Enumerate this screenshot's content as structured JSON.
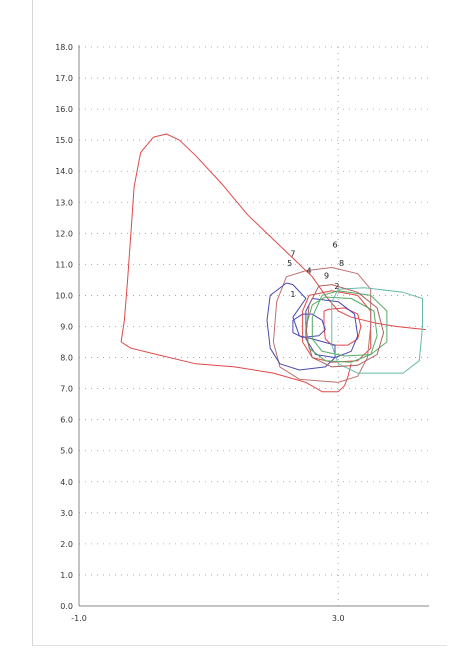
{
  "chart_data": {
    "type": "line",
    "title": "",
    "xlabel": "",
    "ylabel": "",
    "xlim": [
      -1.0,
      4.4
    ],
    "ylim": [
      0,
      18.0
    ],
    "x_tick_labels": [
      "-1.0",
      "3.0"
    ],
    "x_tick_values": [
      -1.0,
      3.0
    ],
    "y_tick_labels": [
      "0.0",
      "1.0",
      "2.0",
      "3.0",
      "4.0",
      "5.0",
      "6.0",
      "7.0",
      "8.0",
      "9.0",
      "10.0",
      "11.0",
      "12.0",
      "13.0",
      "14.0",
      "15.0",
      "16.0",
      "17.0",
      "18.0"
    ],
    "y_tick_values": [
      0,
      1,
      2,
      3,
      4,
      5,
      6,
      7,
      8,
      9,
      10,
      11,
      12,
      13,
      14,
      15,
      16,
      17,
      18
    ],
    "grid": true,
    "series": [
      {
        "color": "#e04848",
        "points": [
          [
            4.35,
            8.9
          ],
          [
            3.9,
            9.0
          ],
          [
            3.6,
            9.1
          ],
          [
            3.4,
            9.2
          ],
          [
            3.2,
            9.3
          ],
          [
            3.0,
            9.5
          ],
          [
            2.8,
            10.0
          ],
          [
            2.6,
            10.6
          ],
          [
            2.4,
            11.0
          ],
          [
            2.0,
            11.8
          ],
          [
            1.6,
            12.6
          ],
          [
            1.2,
            13.6
          ],
          [
            0.8,
            14.5
          ],
          [
            0.55,
            15.0
          ],
          [
            0.35,
            15.2
          ],
          [
            0.15,
            15.1
          ],
          [
            -0.05,
            14.6
          ],
          [
            -0.15,
            13.5
          ],
          [
            -0.2,
            12.0
          ],
          [
            -0.25,
            10.5
          ],
          [
            -0.3,
            9.2
          ],
          [
            -0.35,
            8.5
          ],
          [
            -0.2,
            8.3
          ],
          [
            0.2,
            8.1
          ],
          [
            0.8,
            7.8
          ],
          [
            1.4,
            7.7
          ],
          [
            2.0,
            7.5
          ],
          [
            2.5,
            7.2
          ],
          [
            2.75,
            6.9
          ],
          [
            3.0,
            6.9
          ],
          [
            3.1,
            7.1
          ],
          [
            3.15,
            7.4
          ],
          [
            3.2,
            7.8
          ]
        ]
      },
      {
        "color": "#e04848",
        "points": [
          [
            2.78,
            9.5
          ],
          [
            2.78,
            9.0
          ],
          [
            2.8,
            8.6
          ],
          [
            2.9,
            8.4
          ],
          [
            3.15,
            8.4
          ],
          [
            3.3,
            8.6
          ],
          [
            3.35,
            9.0
          ],
          [
            3.3,
            9.4
          ],
          [
            3.1,
            9.6
          ],
          [
            2.85,
            9.55
          ],
          [
            2.78,
            9.5
          ]
        ]
      },
      {
        "color": "#e04848",
        "points": [
          [
            2.55,
            10.0
          ],
          [
            2.45,
            9.5
          ],
          [
            2.45,
            8.5
          ],
          [
            2.6,
            8.0
          ],
          [
            2.9,
            7.85
          ],
          [
            3.3,
            7.9
          ],
          [
            3.5,
            8.3
          ],
          [
            3.5,
            9.5
          ],
          [
            3.3,
            10.0
          ],
          [
            2.9,
            10.15
          ],
          [
            2.55,
            10.0
          ]
        ]
      },
      {
        "color": "#c07070",
        "points": [
          [
            2.2,
            10.6
          ],
          [
            2.05,
            9.8
          ],
          [
            2.0,
            8.5
          ],
          [
            2.1,
            7.7
          ],
          [
            2.4,
            7.3
          ],
          [
            3.0,
            7.2
          ],
          [
            3.3,
            7.4
          ],
          [
            3.45,
            8.0
          ],
          [
            3.5,
            9.0
          ],
          [
            3.5,
            10.2
          ],
          [
            3.3,
            10.7
          ],
          [
            2.9,
            10.9
          ],
          [
            2.5,
            10.8
          ],
          [
            2.2,
            10.6
          ]
        ]
      },
      {
        "color": "#4a4ab0",
        "points": [
          [
            2.2,
            10.4
          ],
          [
            1.95,
            10.0
          ],
          [
            1.9,
            9.2
          ],
          [
            1.95,
            8.3
          ],
          [
            2.1,
            7.8
          ],
          [
            2.4,
            7.6
          ],
          [
            2.8,
            7.7
          ],
          [
            2.95,
            8.0
          ],
          [
            2.95,
            8.4
          ],
          [
            2.6,
            8.6
          ],
          [
            2.4,
            8.7
          ],
          [
            2.3,
            9.3
          ],
          [
            2.5,
            9.9
          ],
          [
            2.3,
            10.35
          ],
          [
            2.2,
            10.4
          ]
        ]
      },
      {
        "color": "#4a4ab0",
        "points": [
          [
            2.45,
            9.4
          ],
          [
            2.3,
            9.2
          ],
          [
            2.3,
            8.8
          ],
          [
            2.45,
            8.65
          ],
          [
            2.7,
            8.7
          ],
          [
            2.8,
            8.9
          ],
          [
            2.75,
            9.2
          ],
          [
            2.6,
            9.4
          ],
          [
            2.45,
            9.4
          ]
        ]
      },
      {
        "color": "#4a4ab0",
        "points": [
          [
            2.6,
            9.9
          ],
          [
            2.5,
            9.5
          ],
          [
            2.5,
            8.6
          ],
          [
            2.65,
            8.1
          ],
          [
            2.95,
            8.0
          ],
          [
            3.2,
            8.2
          ],
          [
            3.3,
            8.7
          ],
          [
            3.25,
            9.4
          ],
          [
            3.0,
            9.8
          ],
          [
            2.6,
            9.9
          ]
        ]
      },
      {
        "color": "#55aa66",
        "points": [
          [
            2.75,
            10.0
          ],
          [
            2.6,
            9.3
          ],
          [
            2.6,
            8.6
          ],
          [
            2.75,
            8.2
          ],
          [
            3.1,
            8.05
          ],
          [
            3.5,
            8.1
          ],
          [
            3.75,
            8.5
          ],
          [
            3.75,
            9.5
          ],
          [
            3.5,
            10.0
          ],
          [
            3.0,
            10.15
          ],
          [
            2.75,
            10.0
          ]
        ]
      },
      {
        "color": "#55aa66",
        "points": [
          [
            2.6,
            9.7
          ],
          [
            2.5,
            9.0
          ],
          [
            2.55,
            8.3
          ],
          [
            2.8,
            7.9
          ],
          [
            3.2,
            7.85
          ],
          [
            3.5,
            8.1
          ],
          [
            3.6,
            8.7
          ],
          [
            3.55,
            9.5
          ],
          [
            3.2,
            9.9
          ],
          [
            2.8,
            9.95
          ],
          [
            2.6,
            9.7
          ]
        ]
      },
      {
        "color": "#66bbaa",
        "points": [
          [
            3.0,
            10.2
          ],
          [
            2.9,
            9.8
          ],
          [
            2.9,
            8.4
          ],
          [
            3.0,
            7.8
          ],
          [
            3.3,
            7.5
          ],
          [
            4.0,
            7.5
          ],
          [
            4.25,
            7.9
          ],
          [
            4.3,
            9.0
          ],
          [
            4.3,
            9.9
          ],
          [
            4.0,
            10.1
          ],
          [
            3.4,
            10.25
          ],
          [
            3.0,
            10.2
          ]
        ]
      },
      {
        "color": "#b06060",
        "points": [
          [
            2.7,
            10.3
          ],
          [
            2.55,
            9.7
          ],
          [
            2.5,
            8.7
          ],
          [
            2.6,
            8.0
          ],
          [
            2.9,
            7.7
          ],
          [
            3.3,
            7.75
          ],
          [
            3.6,
            8.1
          ],
          [
            3.7,
            8.8
          ],
          [
            3.6,
            9.6
          ],
          [
            3.3,
            10.1
          ],
          [
            2.9,
            10.35
          ],
          [
            2.7,
            10.3
          ]
        ]
      }
    ],
    "loop_labels": [
      {
        "text": "1",
        "x": 2.3,
        "y": 9.95
      },
      {
        "text": "2",
        "x": 2.98,
        "y": 10.2
      },
      {
        "text": "4",
        "x": 2.55,
        "y": 10.7
      },
      {
        "text": "5",
        "x": 2.25,
        "y": 10.95
      },
      {
        "text": "6",
        "x": 2.95,
        "y": 11.55
      },
      {
        "text": "7",
        "x": 2.3,
        "y": 11.25
      },
      {
        "text": "8",
        "x": 3.05,
        "y": 10.95
      },
      {
        "text": "9",
        "x": 2.82,
        "y": 10.55
      }
    ]
  }
}
